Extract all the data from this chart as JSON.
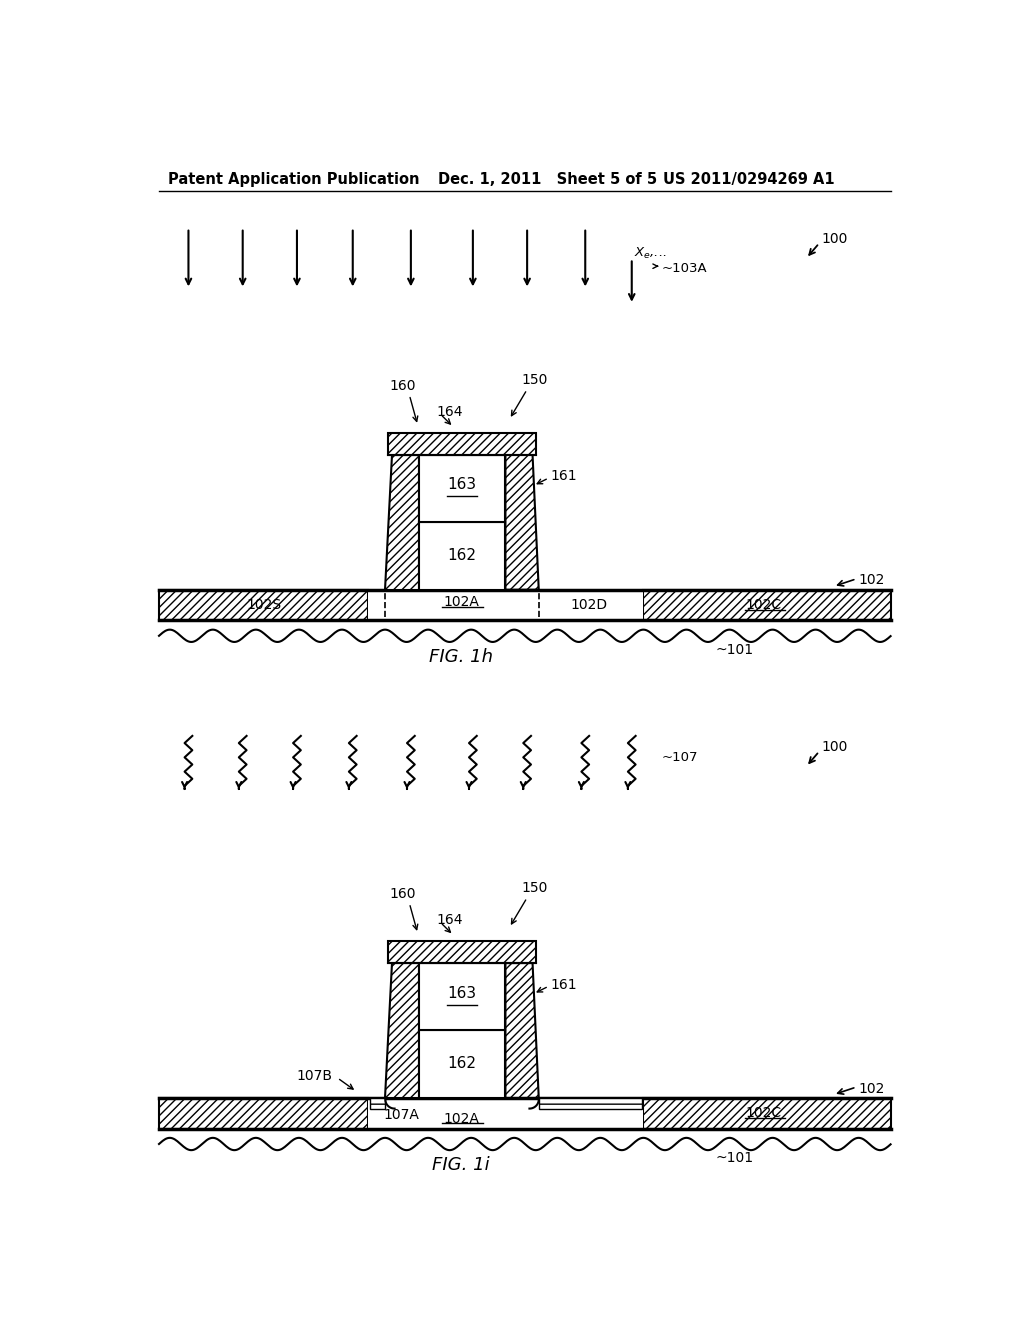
{
  "header_left": "Patent Application Publication",
  "header_mid": "Dec. 1, 2011   Sheet 5 of 5",
  "header_right": "US 2011/0294269 A1",
  "fig1h_label": "FIG. 1h",
  "fig1i_label": "FIG. 1i",
  "bg_color": "#ffffff",
  "line_color": "#000000"
}
